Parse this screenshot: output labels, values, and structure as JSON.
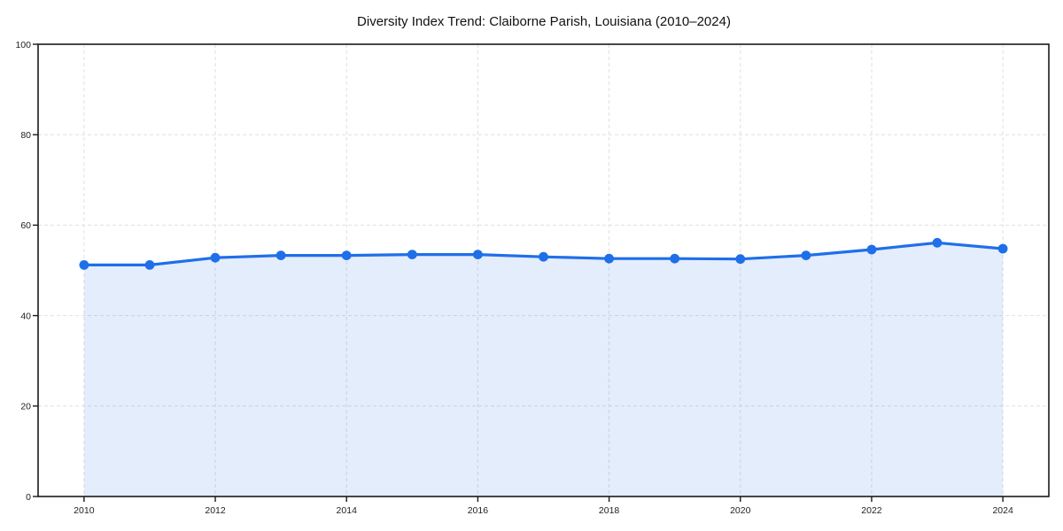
{
  "chart_data": {
    "type": "area",
    "title": "Diversity Index Trend: Claiborne Parish, Louisiana (2010–2024)",
    "x": [
      2010,
      2011,
      2012,
      2013,
      2014,
      2015,
      2016,
      2017,
      2018,
      2019,
      2020,
      2021,
      2022,
      2023,
      2024
    ],
    "values": [
      51.2,
      51.2,
      52.8,
      53.3,
      53.3,
      53.5,
      53.5,
      53.0,
      52.6,
      52.6,
      52.5,
      53.3,
      54.6,
      56.1,
      54.8
    ],
    "xlabel": "",
    "ylabel": "",
    "xlim": [
      2009.3,
      2024.7
    ],
    "ylim": [
      0,
      100
    ],
    "xticks": [
      2010,
      2012,
      2014,
      2016,
      2018,
      2020,
      2022,
      2024
    ],
    "yticks": [
      0,
      20,
      40,
      60,
      80,
      100
    ],
    "grid": true,
    "grid_style": "dashed",
    "legend": "none",
    "colors": {
      "line": "#1f6fe8",
      "marker": "#1f6fe8",
      "fill": "rgba(31,111,232,0.12)",
      "grid": "#e0e0e0",
      "spine": "#1a1a1a",
      "tick": "#1a1a1a",
      "tick_label": "#222222",
      "title": "#111111",
      "background": "#ffffff"
    }
  }
}
